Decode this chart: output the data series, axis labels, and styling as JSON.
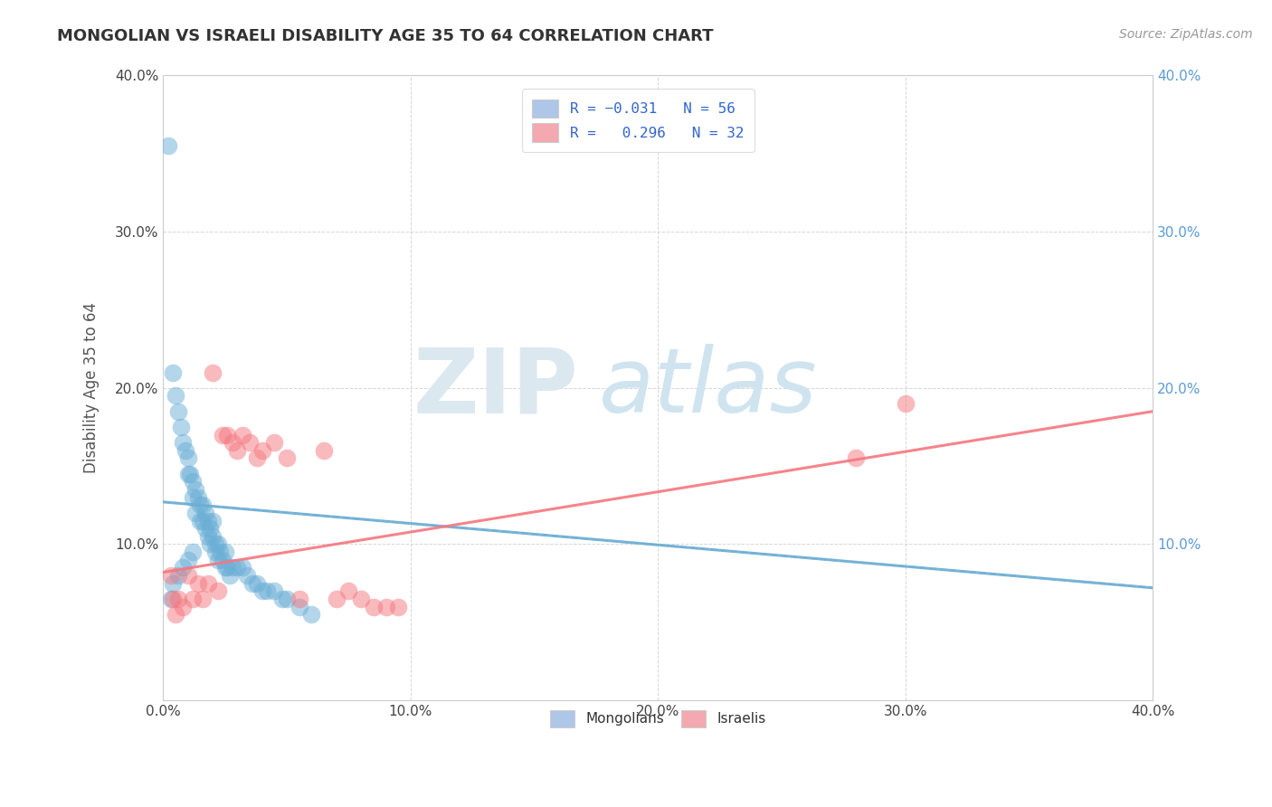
{
  "title": "MONGOLIAN VS ISRAELI DISABILITY AGE 35 TO 64 CORRELATION CHART",
  "source_text": "Source: ZipAtlas.com",
  "ylabel": "Disability Age 35 to 64",
  "xlim": [
    0.0,
    0.4
  ],
  "ylim": [
    0.0,
    0.4
  ],
  "xtick_vals": [
    0.0,
    0.1,
    0.2,
    0.3,
    0.4
  ],
  "ytick_vals": [
    0.0,
    0.1,
    0.2,
    0.3,
    0.4
  ],
  "legend_bottom": [
    "Mongolians",
    "Israelis"
  ],
  "mongolian_color": "#6aaed6",
  "israeli_color": "#f4777f",
  "mongolian_legend_color": "#aec6e8",
  "israeli_legend_color": "#f4a9b0",
  "background_color": "#ffffff",
  "grid_color": "#cccccc",
  "mongolian_x": [
    0.002,
    0.004,
    0.005,
    0.006,
    0.007,
    0.008,
    0.009,
    0.01,
    0.01,
    0.011,
    0.012,
    0.012,
    0.013,
    0.013,
    0.014,
    0.015,
    0.015,
    0.016,
    0.016,
    0.017,
    0.017,
    0.018,
    0.018,
    0.019,
    0.019,
    0.02,
    0.02,
    0.021,
    0.021,
    0.022,
    0.022,
    0.023,
    0.024,
    0.025,
    0.025,
    0.026,
    0.027,
    0.028,
    0.03,
    0.032,
    0.034,
    0.036,
    0.038,
    0.04,
    0.042,
    0.045,
    0.048,
    0.05,
    0.055,
    0.06,
    0.003,
    0.004,
    0.006,
    0.008,
    0.01,
    0.012
  ],
  "mongolian_y": [
    0.355,
    0.21,
    0.195,
    0.185,
    0.175,
    0.165,
    0.16,
    0.155,
    0.145,
    0.145,
    0.14,
    0.13,
    0.135,
    0.12,
    0.13,
    0.125,
    0.115,
    0.125,
    0.115,
    0.12,
    0.11,
    0.115,
    0.105,
    0.11,
    0.1,
    0.115,
    0.105,
    0.1,
    0.095,
    0.1,
    0.09,
    0.095,
    0.09,
    0.095,
    0.085,
    0.085,
    0.08,
    0.085,
    0.085,
    0.085,
    0.08,
    0.075,
    0.075,
    0.07,
    0.07,
    0.07,
    0.065,
    0.065,
    0.06,
    0.055,
    0.065,
    0.075,
    0.08,
    0.085,
    0.09,
    0.095
  ],
  "israeli_x": [
    0.003,
    0.004,
    0.005,
    0.006,
    0.008,
    0.01,
    0.012,
    0.014,
    0.016,
    0.018,
    0.02,
    0.022,
    0.024,
    0.026,
    0.028,
    0.03,
    0.032,
    0.035,
    0.038,
    0.04,
    0.045,
    0.05,
    0.055,
    0.065,
    0.07,
    0.075,
    0.08,
    0.085,
    0.09,
    0.095,
    0.28,
    0.3
  ],
  "israeli_y": [
    0.08,
    0.065,
    0.055,
    0.065,
    0.06,
    0.08,
    0.065,
    0.075,
    0.065,
    0.075,
    0.21,
    0.07,
    0.17,
    0.17,
    0.165,
    0.16,
    0.17,
    0.165,
    0.155,
    0.16,
    0.165,
    0.155,
    0.065,
    0.16,
    0.065,
    0.07,
    0.065,
    0.06,
    0.06,
    0.06,
    0.155,
    0.19
  ],
  "trend_mong_x0": 0.0,
  "trend_mong_y0": 0.127,
  "trend_mong_x1": 0.4,
  "trend_mong_y1": 0.072,
  "trend_isr_x0": 0.0,
  "trend_isr_y0": 0.082,
  "trend_isr_x1": 0.4,
  "trend_isr_y1": 0.185
}
